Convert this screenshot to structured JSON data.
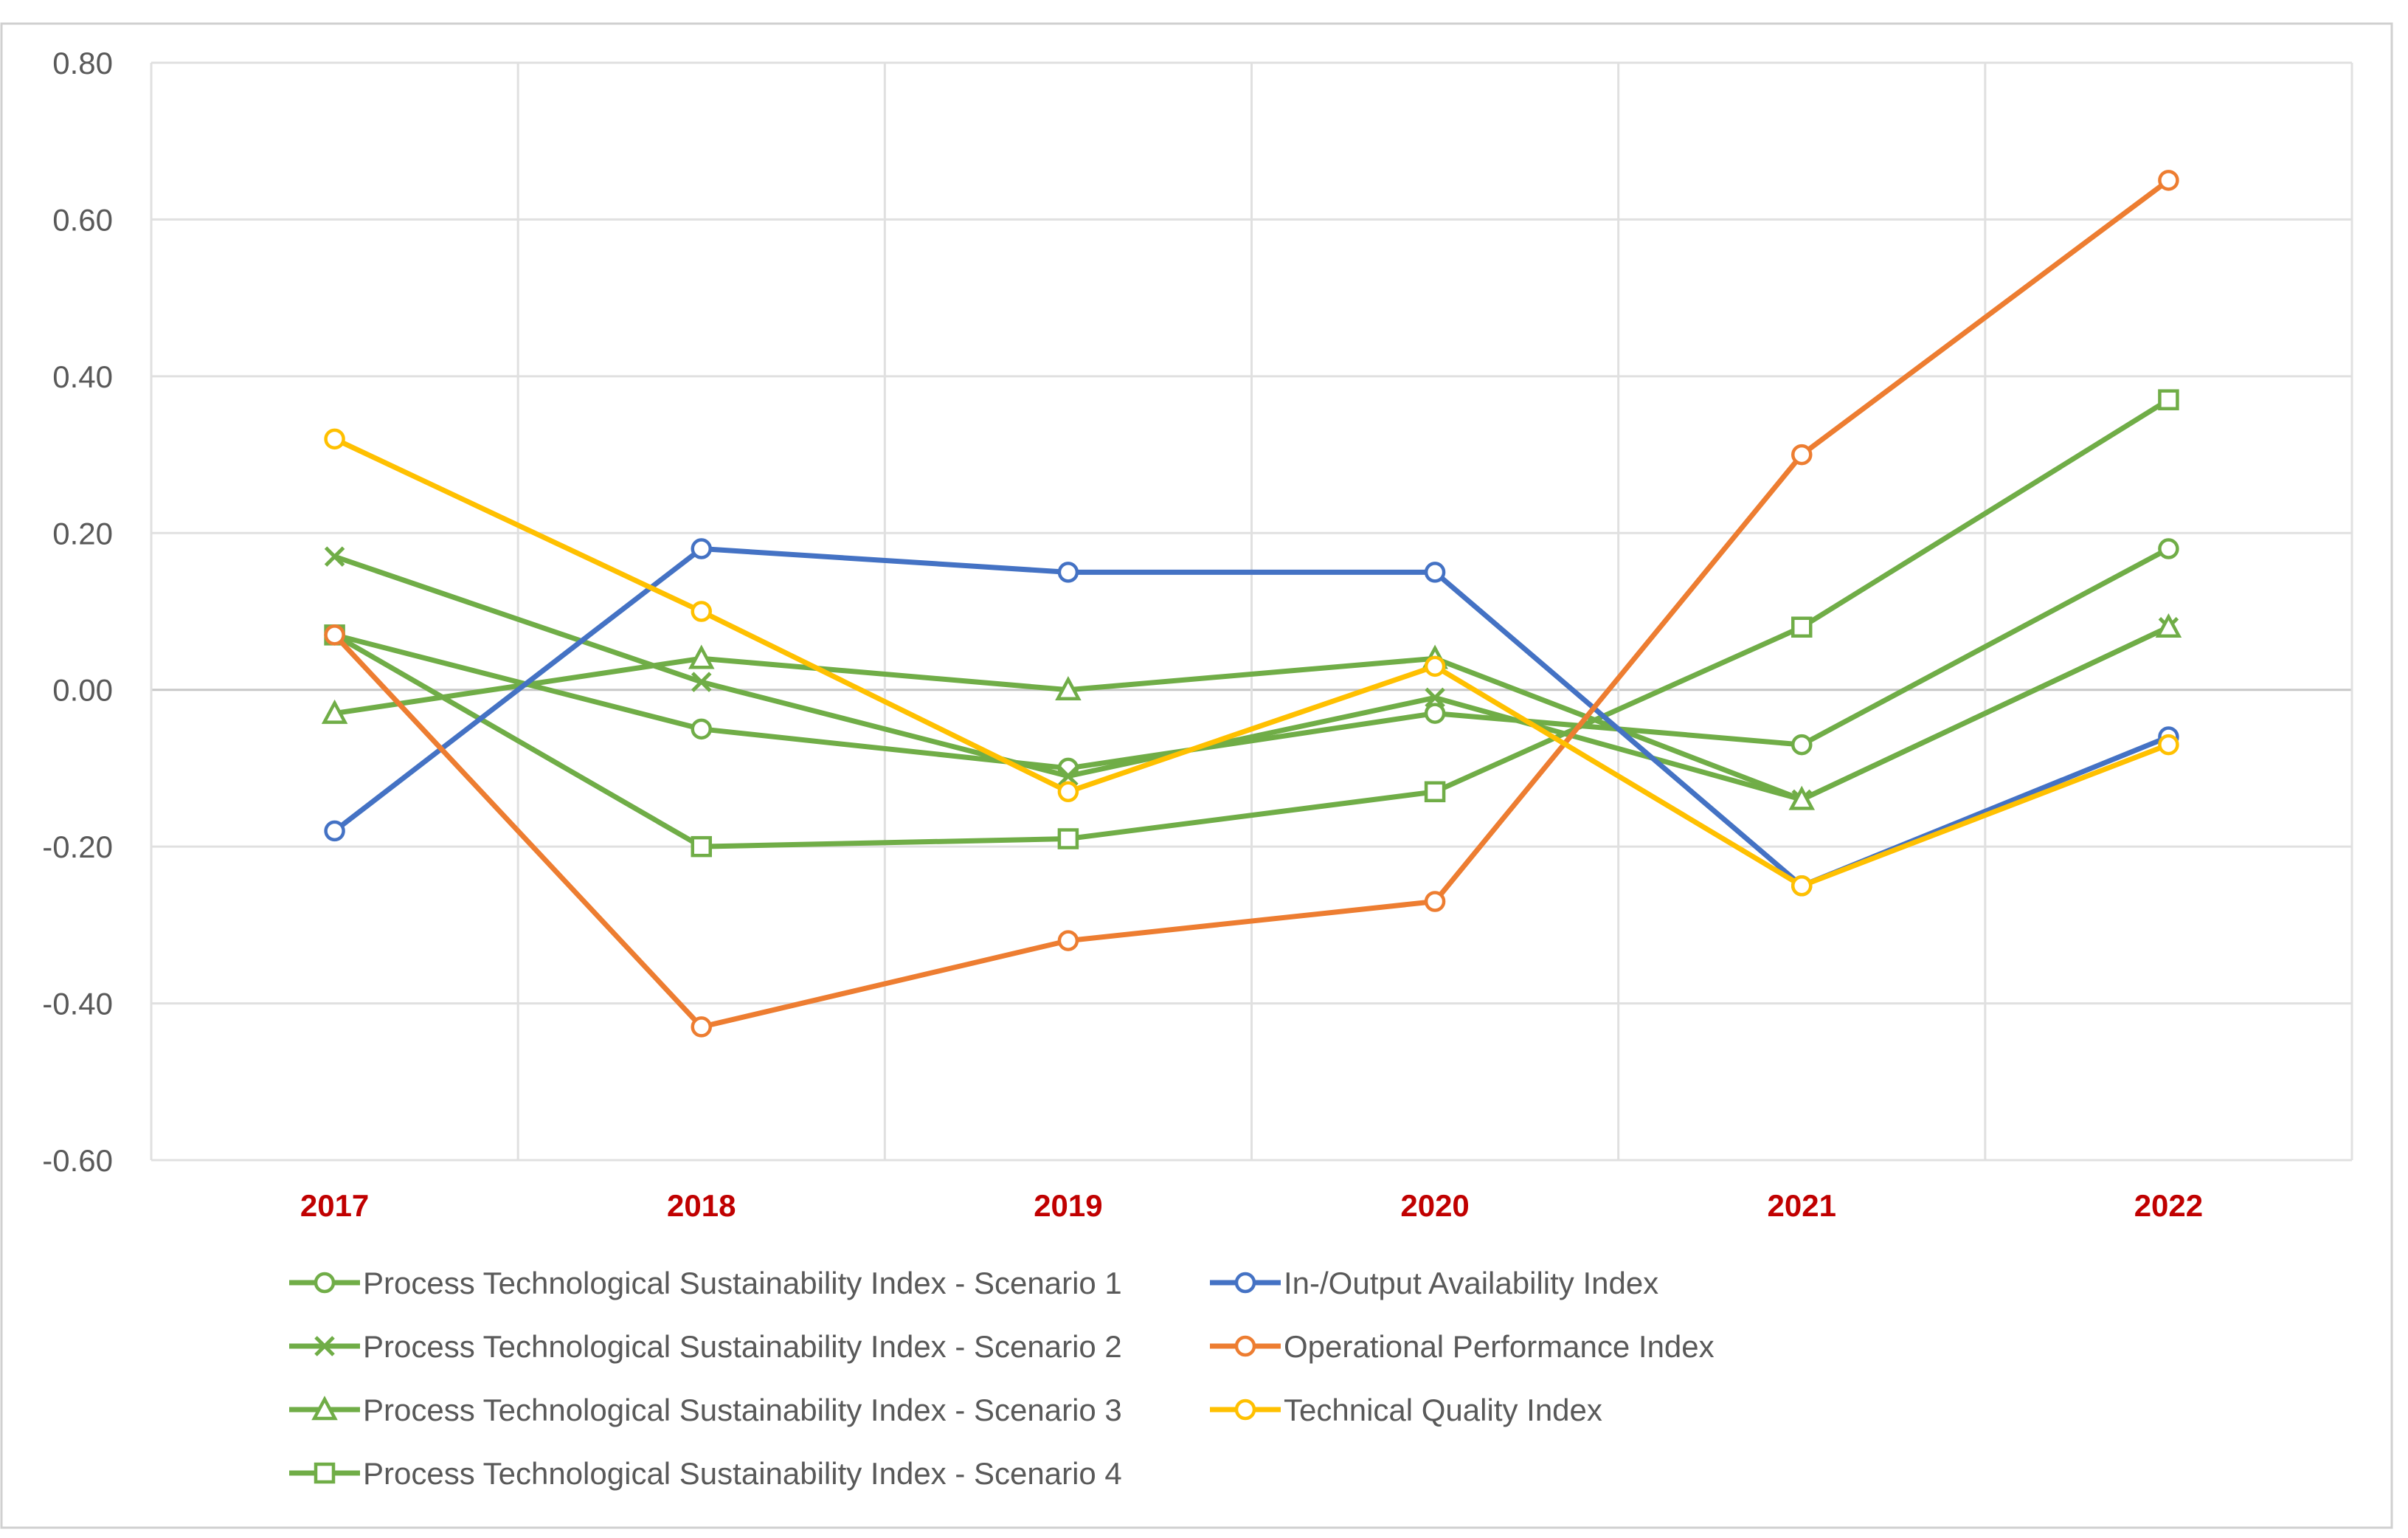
{
  "chart_data": {
    "type": "line",
    "title": "",
    "xlabel": "",
    "ylabel": "",
    "categories": [
      "2017",
      "2018",
      "2019",
      "2020",
      "2021",
      "2022"
    ],
    "ylim": [
      -0.6,
      0.8
    ],
    "yticks": [
      0.8,
      0.6,
      0.4,
      0.2,
      0.0,
      -0.2,
      -0.4,
      -0.6
    ],
    "ytick_labels": [
      "0.80",
      "0.60",
      "0.40",
      "0.20",
      "0.00",
      "-0.20",
      "-0.40",
      "-0.60"
    ],
    "grid": true,
    "legend_position": "bottom",
    "category_label_color": "#C00000",
    "series": [
      {
        "name": "Process Technological Sustainability Index - Scenario 1",
        "color": "#70AD47",
        "marker": "circle",
        "values": [
          0.07,
          -0.05,
          -0.1,
          -0.03,
          -0.07,
          0.18
        ]
      },
      {
        "name": "Process Technological Sustainability Index - Scenario 2",
        "color": "#70AD47",
        "marker": "x",
        "values": [
          0.17,
          0.01,
          -0.11,
          -0.01,
          -0.14,
          0.08
        ]
      },
      {
        "name": "Process Technological Sustainability Index - Scenario 3",
        "color": "#70AD47",
        "marker": "triangle",
        "values": [
          -0.03,
          0.04,
          0.0,
          0.04,
          -0.14,
          0.08
        ]
      },
      {
        "name": "Process Technological Sustainability Index - Scenario 4",
        "color": "#70AD47",
        "marker": "square",
        "values": [
          0.07,
          -0.2,
          -0.19,
          -0.13,
          0.08,
          0.37
        ]
      },
      {
        "name": "In-/Output Availability Index",
        "color": "#4472C4",
        "marker": "circle",
        "values": [
          -0.18,
          0.18,
          0.15,
          0.15,
          -0.25,
          -0.06
        ]
      },
      {
        "name": "Operational Performance Index",
        "color": "#ED7D31",
        "marker": "circle",
        "values": [
          0.07,
          -0.43,
          -0.32,
          -0.27,
          0.3,
          0.65
        ]
      },
      {
        "name": "Technical Quality Index",
        "color": "#FFC000",
        "marker": "circle",
        "values": [
          0.32,
          0.1,
          -0.13,
          0.03,
          -0.25,
          -0.07
        ]
      }
    ]
  }
}
